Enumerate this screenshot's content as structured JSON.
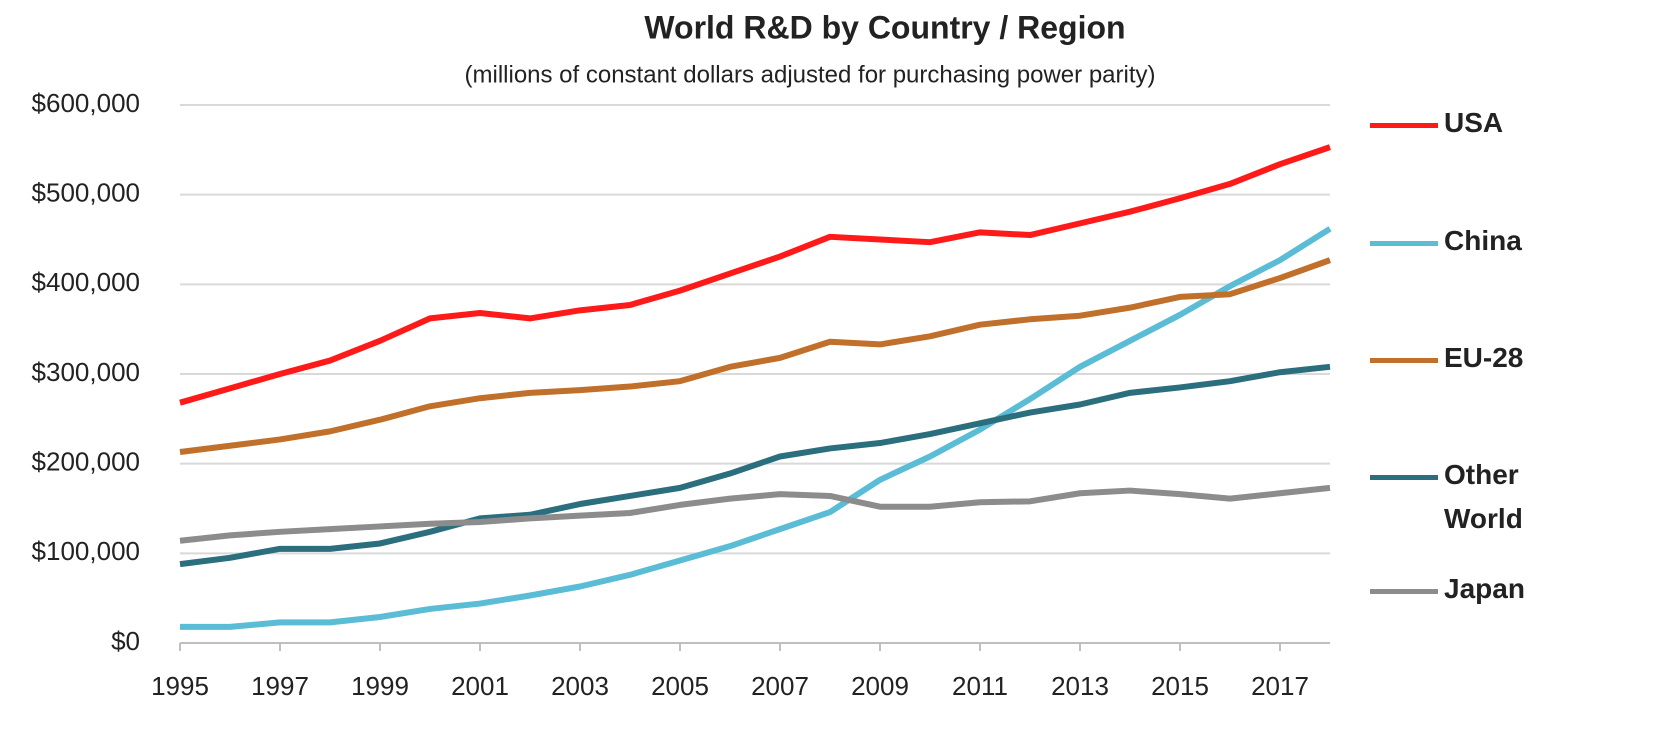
{
  "chart_data": {
    "type": "line",
    "title": "World R&D by Country / Region",
    "subtitle": "(millions of constant dollars adjusted for purchasing power parity)",
    "x": [
      1995,
      1996,
      1997,
      1998,
      1999,
      2000,
      2001,
      2002,
      2003,
      2004,
      2005,
      2006,
      2007,
      2008,
      2009,
      2010,
      2011,
      2012,
      2013,
      2014,
      2015,
      2016,
      2017,
      2018
    ],
    "xlim": [
      1995,
      2018
    ],
    "xticks": [
      1995,
      1997,
      1999,
      2001,
      2003,
      2005,
      2007,
      2009,
      2011,
      2013,
      2015,
      2017
    ],
    "ylim": [
      0,
      600000
    ],
    "yticks": [
      {
        "value": 0,
        "label": "$0"
      },
      {
        "value": 100000,
        "label": "$100,000"
      },
      {
        "value": 200000,
        "label": "$200,000"
      },
      {
        "value": 300000,
        "label": "$300,000"
      },
      {
        "value": 400000,
        "label": "$400,000"
      },
      {
        "value": 500000,
        "label": "$500,000"
      },
      {
        "value": 600000,
        "label": "$600,000"
      }
    ],
    "grid": true,
    "legend": "right",
    "series": [
      {
        "name": "USA",
        "color": "#ff1a1a",
        "values": [
          268000,
          284000,
          300000,
          315000,
          337000,
          362000,
          368000,
          362000,
          371000,
          377000,
          393000,
          412000,
          431000,
          453000,
          450000,
          447000,
          458000,
          455000,
          468000,
          481000,
          496000,
          512000,
          534000,
          553000
        ]
      },
      {
        "name": "China",
        "color": "#5bbcd6",
        "values": [
          18000,
          18000,
          23000,
          23000,
          29000,
          38000,
          44000,
          53000,
          63000,
          76000,
          92000,
          108000,
          127000,
          146000,
          182000,
          208000,
          238000,
          272000,
          308000,
          337000,
          366000,
          398000,
          427000,
          462000
        ]
      },
      {
        "name": "EU-28",
        "color": "#c0702a",
        "values": [
          213000,
          220000,
          227000,
          236000,
          249000,
          264000,
          273000,
          279000,
          282000,
          286000,
          292000,
          308000,
          318000,
          336000,
          333000,
          342000,
          355000,
          361000,
          365000,
          374000,
          386000,
          389000,
          407000,
          427000
        ]
      },
      {
        "name": "Other World",
        "color": "#2b6e7e",
        "values": [
          88000,
          95000,
          105000,
          105000,
          111000,
          124000,
          139000,
          143000,
          155000,
          164000,
          173000,
          189000,
          208000,
          217000,
          223000,
          233000,
          245000,
          257000,
          266000,
          279000,
          285000,
          292000,
          302000,
          308000
        ]
      },
      {
        "name": "Japan",
        "color": "#8c8c8c",
        "values": [
          114000,
          120000,
          124000,
          127000,
          130000,
          133000,
          135000,
          139000,
          142000,
          145000,
          154000,
          161000,
          166000,
          164000,
          152000,
          152000,
          157000,
          158000,
          167000,
          170000,
          166000,
          161000,
          167000,
          173000
        ]
      }
    ]
  }
}
